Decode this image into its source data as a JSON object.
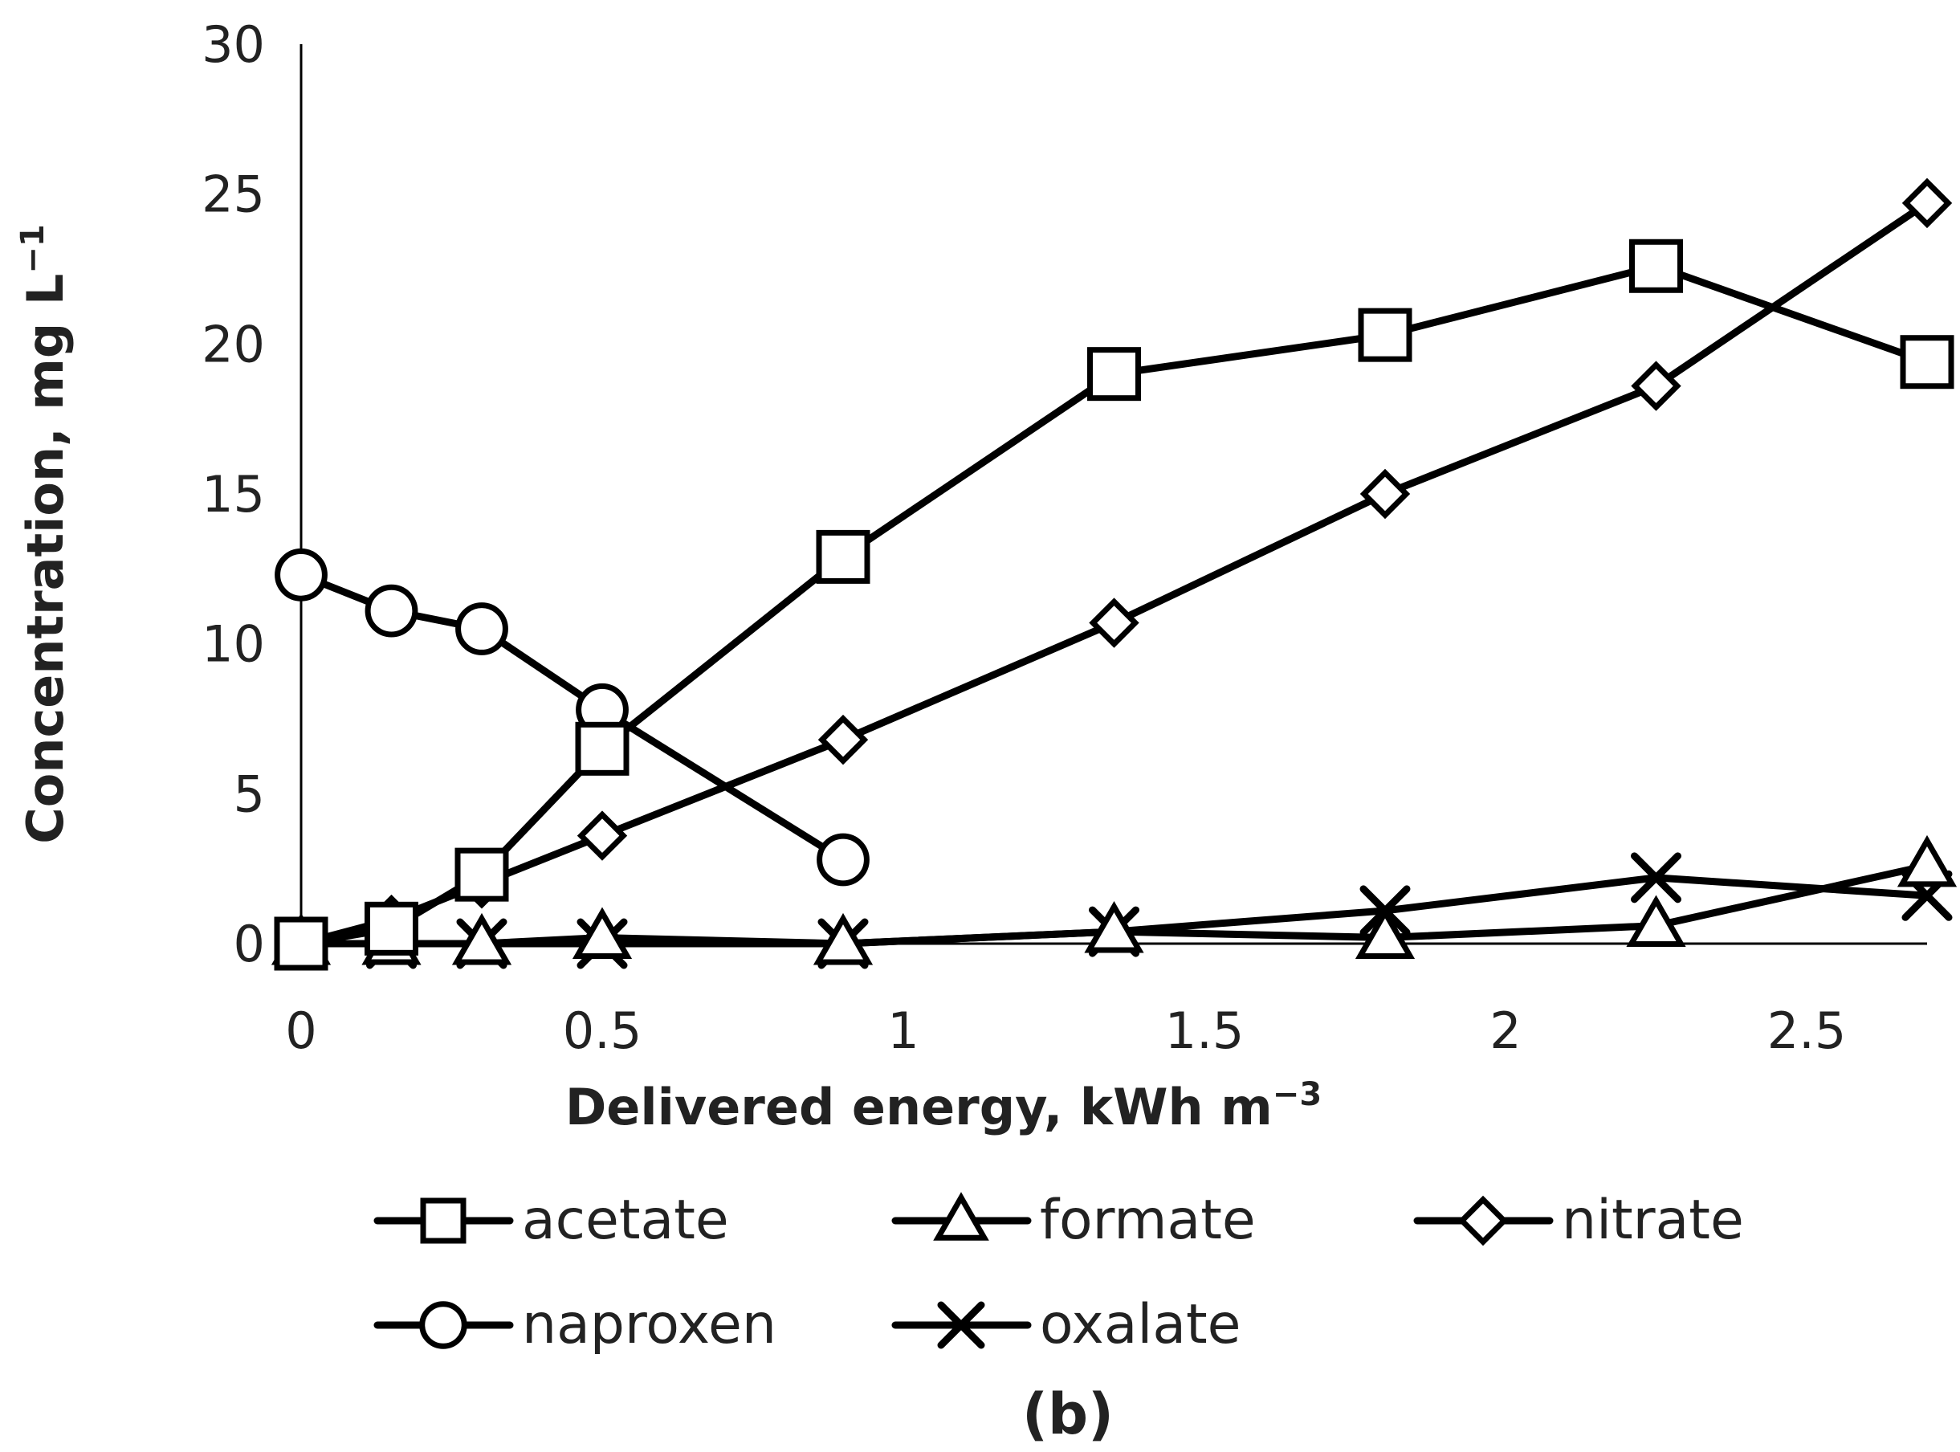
{
  "chart_data": {
    "type": "line",
    "panel_label": "(b)",
    "xlabel": "Delivered energy, kWh m",
    "xlabel_sup": "−3",
    "ylabel": "Concentration, mg L",
    "ylabel_sup": "−1",
    "xlim": [
      0,
      2.7
    ],
    "ylim": [
      0,
      30
    ],
    "x_ticks": [
      "0",
      "0.5",
      "1",
      "1.5",
      "2",
      "2.5"
    ],
    "y_ticks": [
      "0",
      "5",
      "10",
      "15",
      "20",
      "25",
      "30"
    ],
    "grid": false,
    "legend_position": "bottom",
    "series": [
      {
        "name": "acetate",
        "marker": "square",
        "x": [
          0,
          0.15,
          0.3,
          0.5,
          0.9,
          1.35,
          1.8,
          2.25,
          2.7
        ],
        "y": [
          0,
          0.5,
          2.3,
          6.5,
          12.9,
          19.0,
          20.3,
          22.6,
          19.4
        ]
      },
      {
        "name": "formate",
        "marker": "triangle",
        "x": [
          0,
          0.15,
          0.3,
          0.5,
          0.9,
          1.35,
          1.8,
          2.25,
          2.7
        ],
        "y": [
          0,
          0,
          0,
          0.2,
          0,
          0.4,
          0.2,
          0.6,
          2.6
        ]
      },
      {
        "name": "nitrate",
        "marker": "diamond",
        "x": [
          0,
          0.15,
          0.3,
          0.5,
          0.9,
          1.35,
          1.8,
          2.25,
          2.7
        ],
        "y": [
          0,
          0.8,
          2.0,
          3.6,
          6.8,
          10.7,
          15.0,
          18.6,
          24.7
        ]
      },
      {
        "name": "naproxen",
        "marker": "circle",
        "x": [
          0,
          0.15,
          0.3,
          0.5,
          0.9
        ],
        "y": [
          12.3,
          11.1,
          10.5,
          7.8,
          2.8
        ]
      },
      {
        "name": "oxalate",
        "marker": "x",
        "x": [
          0,
          0.15,
          0.3,
          0.5,
          0.9,
          1.35,
          1.8,
          2.25,
          2.7
        ],
        "y": [
          0,
          0,
          0,
          0,
          0,
          0.4,
          1.1,
          2.2,
          1.6
        ]
      }
    ]
  }
}
